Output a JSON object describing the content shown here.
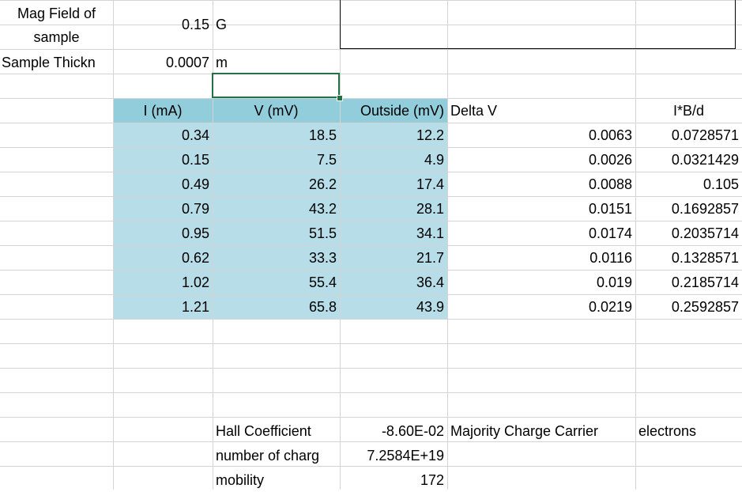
{
  "params": {
    "mag_label": "Mag Field of sample",
    "mag_value": "0.15",
    "mag_unit": "G",
    "thick_label": "Sample Thickn",
    "thick_value": "0.0007",
    "thick_unit": "m"
  },
  "table": {
    "headers": [
      "I (mA)",
      "V (mV)",
      "Outside (mV)",
      "Delta V",
      "I*B/d"
    ],
    "rows": [
      {
        "i": "0.34",
        "v": "18.5",
        "out": "12.2",
        "dv": "0.0063",
        "ibd": "0.0728571"
      },
      {
        "i": "0.15",
        "v": "7.5",
        "out": "4.9",
        "dv": "0.0026",
        "ibd": "0.0321429"
      },
      {
        "i": "0.49",
        "v": "26.2",
        "out": "17.4",
        "dv": "0.0088",
        "ibd": "0.105"
      },
      {
        "i": "0.79",
        "v": "43.2",
        "out": "28.1",
        "dv": "0.0151",
        "ibd": "0.1692857"
      },
      {
        "i": "0.95",
        "v": "51.5",
        "out": "34.1",
        "dv": "0.0174",
        "ibd": "0.2035714"
      },
      {
        "i": "0.62",
        "v": "33.3",
        "out": "21.7",
        "dv": "0.0116",
        "ibd": "0.1328571"
      },
      {
        "i": "1.02",
        "v": "55.4",
        "out": "36.4",
        "dv": "0.019",
        "ibd": "0.2185714"
      },
      {
        "i": "1.21",
        "v": "65.8",
        "out": "43.9",
        "dv": "0.0219",
        "ibd": "0.2592857"
      }
    ]
  },
  "results": {
    "hall_label": "Hall Coefficient",
    "hall_value": "-8.60E-02",
    "carrier_label": "Majority Charge Carrier",
    "carrier_value": "electrons",
    "number_label": "number of charg",
    "number_value": "7.2584E+19",
    "mobility_label": "mobility",
    "mobility_value": "172"
  },
  "colors": {
    "data_fill": "#b7dde8",
    "header_fill": "#92cddc",
    "selection": "#217346",
    "gridline": "#d4d4d4"
  }
}
